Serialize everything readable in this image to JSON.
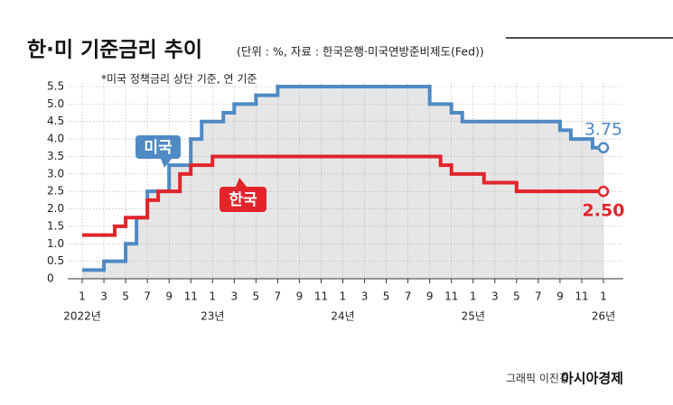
{
  "chart_data": {
    "type": "step-line",
    "title": "한·미 기준금리 추이",
    "subtitle": "(단위 : %, 자료 : 한국은행·미국연방준비제도(Fed))",
    "note": "*미국 정책금리 상단 기준, 연 기준",
    "credit": "그래픽 이진경",
    "brand": "아시아경제",
    "x": [
      0,
      1,
      2,
      3,
      4,
      5,
      6,
      7,
      8,
      9,
      10,
      11,
      12,
      13,
      14,
      15,
      16,
      17,
      18,
      19,
      20,
      21,
      22,
      23,
      24,
      25,
      26,
      27,
      28,
      29,
      30,
      31,
      32,
      33,
      34,
      35,
      36,
      37,
      38,
      39,
      40,
      41,
      42,
      43,
      44,
      45,
      46,
      47,
      48
    ],
    "xlim": [
      0,
      48
    ],
    "xticks": [
      {
        "value": 0,
        "label": "1"
      },
      {
        "value": 2,
        "label": "3"
      },
      {
        "value": 4,
        "label": "5"
      },
      {
        "value": 6,
        "label": "7"
      },
      {
        "value": 8,
        "label": "9"
      },
      {
        "value": 10,
        "label": "11"
      },
      {
        "value": 12,
        "label": "1"
      },
      {
        "value": 14,
        "label": "3"
      },
      {
        "value": 16,
        "label": "5"
      },
      {
        "value": 18,
        "label": "7"
      },
      {
        "value": 20,
        "label": "9"
      },
      {
        "value": 22,
        "label": "11"
      },
      {
        "value": 24,
        "label": "1"
      },
      {
        "value": 26,
        "label": "3"
      },
      {
        "value": 28,
        "label": "5"
      },
      {
        "value": 30,
        "label": "7"
      },
      {
        "value": 32,
        "label": "9"
      },
      {
        "value": 34,
        "label": "11"
      },
      {
        "value": 36,
        "label": "1"
      },
      {
        "value": 38,
        "label": "3"
      },
      {
        "value": 40,
        "label": "5"
      },
      {
        "value": 42,
        "label": "7"
      },
      {
        "value": 44,
        "label": "9"
      },
      {
        "value": 46,
        "label": "11"
      },
      {
        "value": 48,
        "label": "1"
      }
    ],
    "year_labels": [
      {
        "value": 0,
        "label": "2022년"
      },
      {
        "value": 12,
        "label": "23년"
      },
      {
        "value": 24,
        "label": "24년"
      },
      {
        "value": 36,
        "label": "25년"
      },
      {
        "value": 48,
        "label": "26년"
      }
    ],
    "ylim": [
      0,
      5.5
    ],
    "yticks": [
      0,
      0.5,
      {
        "value": 1,
        "label": "1.0"
      },
      1.5,
      {
        "value": 2,
        "label": "2.0"
      },
      2.5,
      {
        "value": 3,
        "label": "3.0"
      },
      3.5,
      {
        "value": 4,
        "label": "4.0"
      },
      4.5,
      {
        "value": 5,
        "label": "5.0"
      },
      5.5
    ],
    "grid": true,
    "series": [
      {
        "name": "미국",
        "color": "#4f8ac4",
        "values": [
          0.25,
          0.25,
          0.5,
          0.5,
          1.0,
          1.75,
          2.5,
          2.5,
          3.25,
          3.25,
          4.0,
          4.5,
          4.5,
          4.75,
          5.0,
          5.0,
          5.25,
          5.25,
          5.5,
          5.5,
          5.5,
          5.5,
          5.5,
          5.5,
          5.5,
          5.5,
          5.5,
          5.5,
          5.5,
          5.5,
          5.5,
          5.5,
          5.0,
          5.0,
          4.75,
          4.5,
          4.5,
          4.5,
          4.5,
          4.5,
          4.5,
          4.5,
          4.5,
          4.5,
          4.25,
          4.0,
          4.0,
          3.75,
          3.75
        ]
      },
      {
        "name": "한국",
        "color": "#e3242b",
        "values": [
          1.25,
          1.25,
          1.25,
          1.5,
          1.75,
          1.75,
          2.25,
          2.5,
          2.5,
          3.0,
          3.25,
          3.25,
          3.5,
          3.5,
          3.5,
          3.5,
          3.5,
          3.5,
          3.5,
          3.5,
          3.5,
          3.5,
          3.5,
          3.5,
          3.5,
          3.5,
          3.5,
          3.5,
          3.5,
          3.5,
          3.5,
          3.5,
          3.5,
          3.25,
          3.0,
          3.0,
          3.0,
          2.75,
          2.75,
          2.75,
          2.5,
          2.5,
          2.5,
          2.5,
          2.5,
          2.5,
          2.5,
          2.5,
          2.5
        ],
        "value_labels": [
          null,
          null,
          null,
          null,
          null,
          null,
          null,
          null,
          null,
          null,
          null,
          null,
          null,
          null,
          null,
          null,
          null,
          null,
          null,
          null,
          null,
          null,
          null,
          null,
          null,
          null,
          null,
          null,
          null,
          null,
          null,
          null,
          null,
          null,
          null,
          null,
          null,
          null,
          null,
          null,
          null,
          null,
          null,
          null,
          null,
          null,
          null,
          null,
          "2.50"
        ]
      }
    ]
  }
}
